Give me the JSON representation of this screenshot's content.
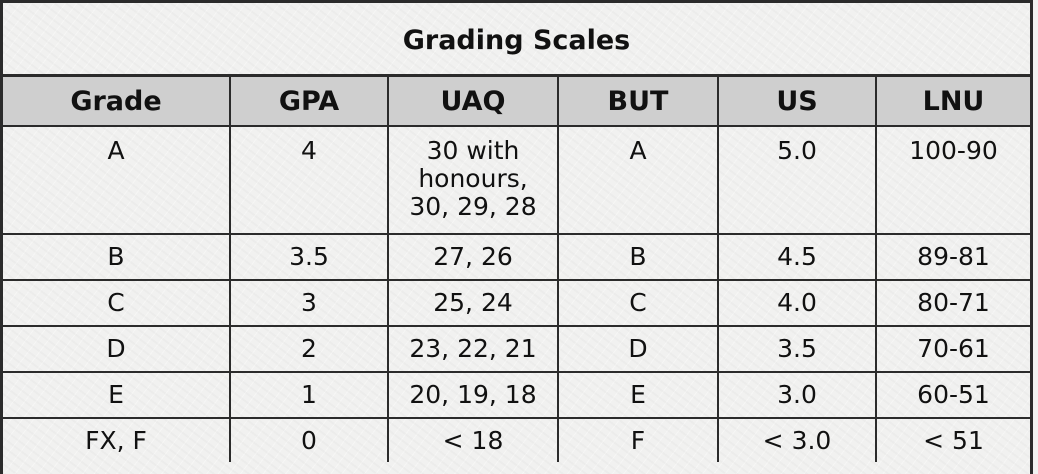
{
  "title": "Grading Scales",
  "columns": [
    "Grade",
    "GPA",
    "UAQ",
    "BUT",
    "US",
    "LNU"
  ],
  "rows": [
    {
      "grade": "A",
      "gpa": "4",
      "uaq": [
        "30 with",
        "honours,",
        "30, 29, 28"
      ],
      "but": "A",
      "us": "5.0",
      "lnu": "100-90"
    },
    {
      "grade": "B",
      "gpa": "3.5",
      "uaq": [
        "27, 26"
      ],
      "but": "B",
      "us": "4.5",
      "lnu": "89-81"
    },
    {
      "grade": "C",
      "gpa": "3",
      "uaq": [
        "25, 24"
      ],
      "but": "C",
      "us": "4.0",
      "lnu": "80-71"
    },
    {
      "grade": "D",
      "gpa": "2",
      "uaq": [
        "23, 22, 21"
      ],
      "but": "D",
      "us": "3.5",
      "lnu": "70-61"
    },
    {
      "grade": "E",
      "gpa": "1",
      "uaq": [
        "20, 19, 18"
      ],
      "but": "E",
      "us": "3.0",
      "lnu": "60-51"
    },
    {
      "grade": "FX, F",
      "gpa": "0",
      "uaq": [
        "< 18"
      ],
      "but": "F",
      "us": "< 3.0",
      "lnu": "< 51"
    }
  ]
}
